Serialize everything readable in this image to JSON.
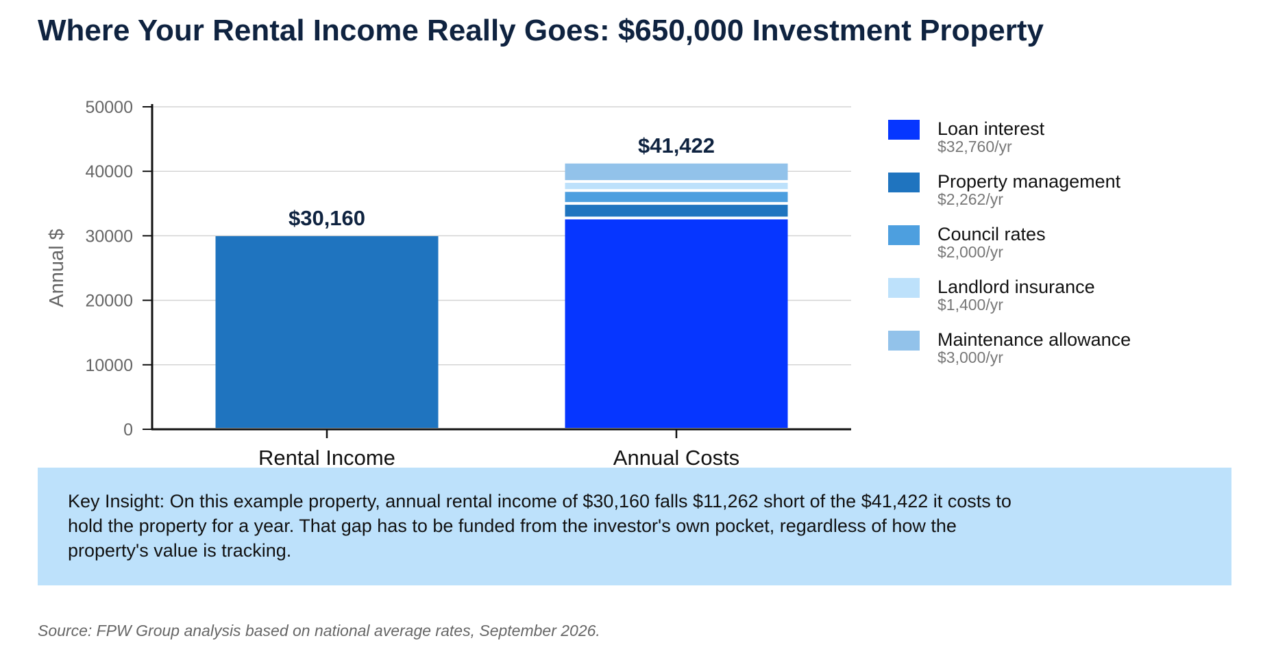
{
  "title": "Where Your Rental Income Really Goes: $650,000 Investment Property",
  "chart_data": {
    "type": "bar",
    "ylabel": "Annual $",
    "ylim": [
      0,
      50000
    ],
    "yticks": [
      0,
      10000,
      20000,
      30000,
      40000,
      50000
    ],
    "grid": true,
    "legend_position": "right",
    "categories": [
      "Rental Income",
      "Annual Costs"
    ],
    "bars": [
      {
        "category": "Rental Income",
        "total_label": "$30,160",
        "segments": [
          {
            "value": 30160,
            "color": "#1f74bf"
          }
        ]
      },
      {
        "category": "Annual Costs",
        "total_label": "$41,422",
        "segments": [
          {
            "name": "Loan interest",
            "value": 32760,
            "color": "#0636ff"
          },
          {
            "name": "Property management",
            "value": 2262,
            "color": "#1f74bf"
          },
          {
            "name": "Council rates",
            "value": 2000,
            "color": "#4d9fdf"
          },
          {
            "name": "Landlord insurance",
            "value": 1400,
            "color": "#bde1fb"
          },
          {
            "name": "Maintenance allowance",
            "value": 3000,
            "color": "#92c2ea"
          }
        ]
      }
    ],
    "legend": [
      {
        "name": "Loan interest",
        "amount": "$32,760/yr",
        "color": "#0636ff"
      },
      {
        "name": "Property management",
        "amount": "$2,262/yr",
        "color": "#1f74bf"
      },
      {
        "name": "Council rates",
        "amount": "$2,000/yr",
        "color": "#4d9fdf"
      },
      {
        "name": "Landlord insurance",
        "amount": "$1,400/yr",
        "color": "#bde1fb"
      },
      {
        "name": "Maintenance allowance",
        "amount": "$3,000/yr",
        "color": "#92c2ea"
      }
    ]
  },
  "insight": {
    "text": "Key Insight: On this example property, annual rental income of $30,160 falls $11,262 short of the $41,422 it costs to hold the property for a year. That gap has to be funded from the investor's own pocket, regardless of how the property's value is tracking."
  },
  "source": "Source: FPW Group analysis based on national average rates, September 2026."
}
